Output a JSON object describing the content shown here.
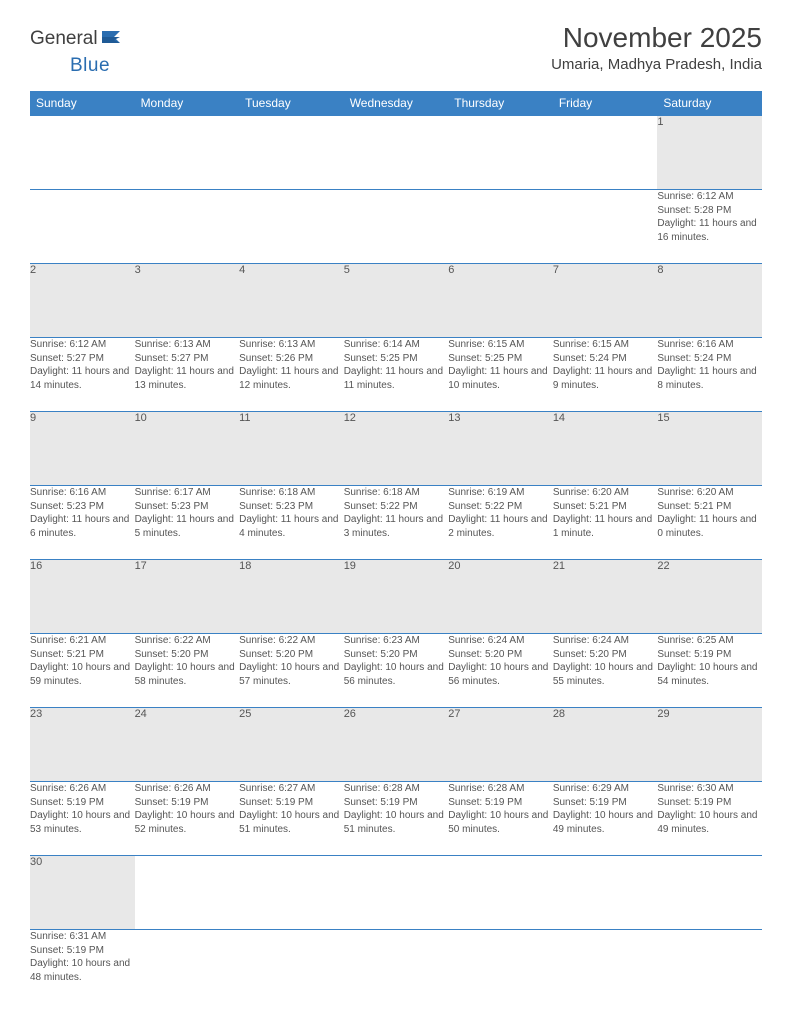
{
  "logo": {
    "text1": "General",
    "text2": "Blue"
  },
  "title": "November 2025",
  "location": "Umaria, Madhya Pradesh, India",
  "colors": {
    "header_bg": "#3a81c4",
    "header_text": "#ffffff",
    "daynum_bg": "#e8e8e8",
    "text": "#555555",
    "border": "#3a81c4",
    "logo_general": "#404040",
    "logo_blue": "#2a6db0"
  },
  "weekdays": [
    "Sunday",
    "Monday",
    "Tuesday",
    "Wednesday",
    "Thursday",
    "Friday",
    "Saturday"
  ],
  "weeks": [
    [
      null,
      null,
      null,
      null,
      null,
      null,
      {
        "d": "1",
        "sr": "Sunrise: 6:12 AM",
        "ss": "Sunset: 5:28 PM",
        "dl": "Daylight: 11 hours and 16 minutes."
      }
    ],
    [
      {
        "d": "2",
        "sr": "Sunrise: 6:12 AM",
        "ss": "Sunset: 5:27 PM",
        "dl": "Daylight: 11 hours and 14 minutes."
      },
      {
        "d": "3",
        "sr": "Sunrise: 6:13 AM",
        "ss": "Sunset: 5:27 PM",
        "dl": "Daylight: 11 hours and 13 minutes."
      },
      {
        "d": "4",
        "sr": "Sunrise: 6:13 AM",
        "ss": "Sunset: 5:26 PM",
        "dl": "Daylight: 11 hours and 12 minutes."
      },
      {
        "d": "5",
        "sr": "Sunrise: 6:14 AM",
        "ss": "Sunset: 5:25 PM",
        "dl": "Daylight: 11 hours and 11 minutes."
      },
      {
        "d": "6",
        "sr": "Sunrise: 6:15 AM",
        "ss": "Sunset: 5:25 PM",
        "dl": "Daylight: 11 hours and 10 minutes."
      },
      {
        "d": "7",
        "sr": "Sunrise: 6:15 AM",
        "ss": "Sunset: 5:24 PM",
        "dl": "Daylight: 11 hours and 9 minutes."
      },
      {
        "d": "8",
        "sr": "Sunrise: 6:16 AM",
        "ss": "Sunset: 5:24 PM",
        "dl": "Daylight: 11 hours and 8 minutes."
      }
    ],
    [
      {
        "d": "9",
        "sr": "Sunrise: 6:16 AM",
        "ss": "Sunset: 5:23 PM",
        "dl": "Daylight: 11 hours and 6 minutes."
      },
      {
        "d": "10",
        "sr": "Sunrise: 6:17 AM",
        "ss": "Sunset: 5:23 PM",
        "dl": "Daylight: 11 hours and 5 minutes."
      },
      {
        "d": "11",
        "sr": "Sunrise: 6:18 AM",
        "ss": "Sunset: 5:23 PM",
        "dl": "Daylight: 11 hours and 4 minutes."
      },
      {
        "d": "12",
        "sr": "Sunrise: 6:18 AM",
        "ss": "Sunset: 5:22 PM",
        "dl": "Daylight: 11 hours and 3 minutes."
      },
      {
        "d": "13",
        "sr": "Sunrise: 6:19 AM",
        "ss": "Sunset: 5:22 PM",
        "dl": "Daylight: 11 hours and 2 minutes."
      },
      {
        "d": "14",
        "sr": "Sunrise: 6:20 AM",
        "ss": "Sunset: 5:21 PM",
        "dl": "Daylight: 11 hours and 1 minute."
      },
      {
        "d": "15",
        "sr": "Sunrise: 6:20 AM",
        "ss": "Sunset: 5:21 PM",
        "dl": "Daylight: 11 hours and 0 minutes."
      }
    ],
    [
      {
        "d": "16",
        "sr": "Sunrise: 6:21 AM",
        "ss": "Sunset: 5:21 PM",
        "dl": "Daylight: 10 hours and 59 minutes."
      },
      {
        "d": "17",
        "sr": "Sunrise: 6:22 AM",
        "ss": "Sunset: 5:20 PM",
        "dl": "Daylight: 10 hours and 58 minutes."
      },
      {
        "d": "18",
        "sr": "Sunrise: 6:22 AM",
        "ss": "Sunset: 5:20 PM",
        "dl": "Daylight: 10 hours and 57 minutes."
      },
      {
        "d": "19",
        "sr": "Sunrise: 6:23 AM",
        "ss": "Sunset: 5:20 PM",
        "dl": "Daylight: 10 hours and 56 minutes."
      },
      {
        "d": "20",
        "sr": "Sunrise: 6:24 AM",
        "ss": "Sunset: 5:20 PM",
        "dl": "Daylight: 10 hours and 56 minutes."
      },
      {
        "d": "21",
        "sr": "Sunrise: 6:24 AM",
        "ss": "Sunset: 5:20 PM",
        "dl": "Daylight: 10 hours and 55 minutes."
      },
      {
        "d": "22",
        "sr": "Sunrise: 6:25 AM",
        "ss": "Sunset: 5:19 PM",
        "dl": "Daylight: 10 hours and 54 minutes."
      }
    ],
    [
      {
        "d": "23",
        "sr": "Sunrise: 6:26 AM",
        "ss": "Sunset: 5:19 PM",
        "dl": "Daylight: 10 hours and 53 minutes."
      },
      {
        "d": "24",
        "sr": "Sunrise: 6:26 AM",
        "ss": "Sunset: 5:19 PM",
        "dl": "Daylight: 10 hours and 52 minutes."
      },
      {
        "d": "25",
        "sr": "Sunrise: 6:27 AM",
        "ss": "Sunset: 5:19 PM",
        "dl": "Daylight: 10 hours and 51 minutes."
      },
      {
        "d": "26",
        "sr": "Sunrise: 6:28 AM",
        "ss": "Sunset: 5:19 PM",
        "dl": "Daylight: 10 hours and 51 minutes."
      },
      {
        "d": "27",
        "sr": "Sunrise: 6:28 AM",
        "ss": "Sunset: 5:19 PM",
        "dl": "Daylight: 10 hours and 50 minutes."
      },
      {
        "d": "28",
        "sr": "Sunrise: 6:29 AM",
        "ss": "Sunset: 5:19 PM",
        "dl": "Daylight: 10 hours and 49 minutes."
      },
      {
        "d": "29",
        "sr": "Sunrise: 6:30 AM",
        "ss": "Sunset: 5:19 PM",
        "dl": "Daylight: 10 hours and 49 minutes."
      }
    ],
    [
      {
        "d": "30",
        "sr": "Sunrise: 6:31 AM",
        "ss": "Sunset: 5:19 PM",
        "dl": "Daylight: 10 hours and 48 minutes."
      },
      null,
      null,
      null,
      null,
      null,
      null
    ]
  ]
}
